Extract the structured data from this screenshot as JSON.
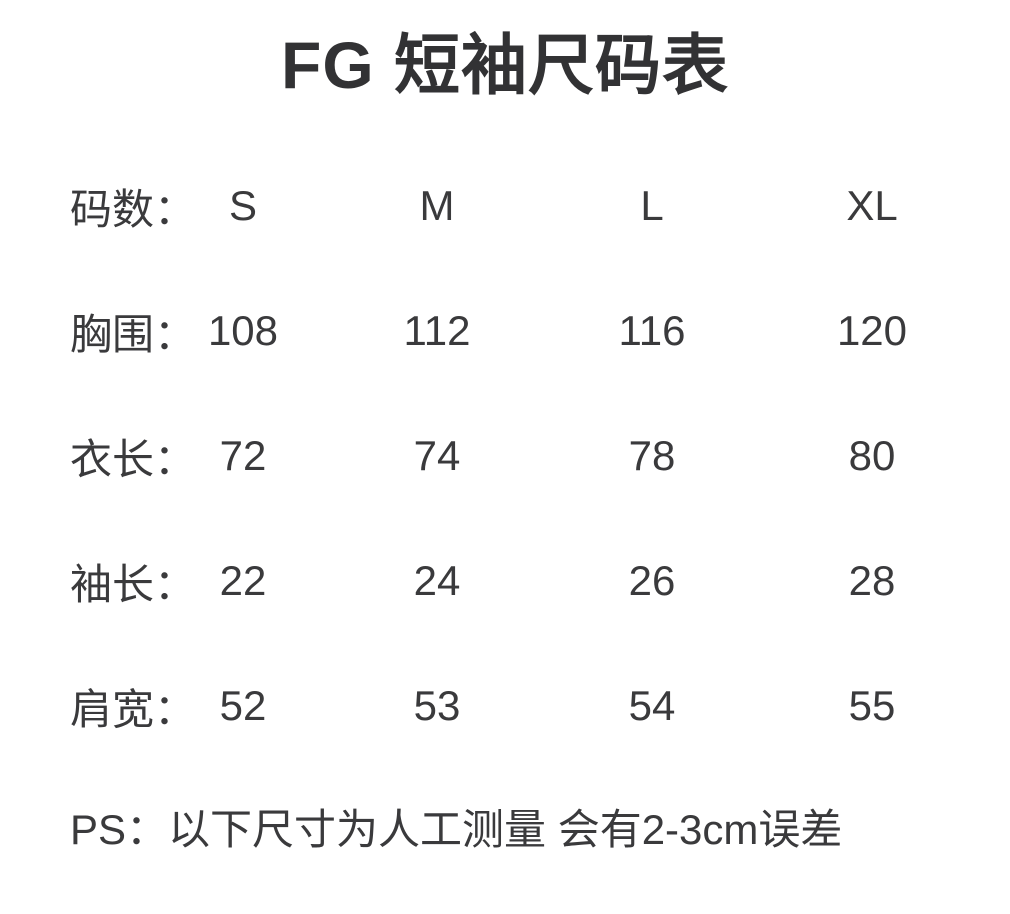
{
  "colors": {
    "background": "#ffffff",
    "text": "#3a3a3c",
    "title": "#323234"
  },
  "chart_data": {
    "type": "table",
    "title": "FG 短袖尺码表",
    "header": {
      "label": "码数：",
      "sizes": [
        "S",
        "M",
        "L",
        "XL"
      ]
    },
    "rows": [
      {
        "label": "胸围：",
        "values": [
          108,
          112,
          116,
          120
        ]
      },
      {
        "label": "衣长：",
        "values": [
          72,
          74,
          78,
          80
        ]
      },
      {
        "label": "袖长：",
        "values": [
          22,
          24,
          26,
          28
        ]
      },
      {
        "label": "肩宽：",
        "values": [
          52,
          53,
          54,
          55
        ]
      }
    ],
    "footnote": "PS：以下尺寸为人工测量 会有2-3cm误差"
  }
}
